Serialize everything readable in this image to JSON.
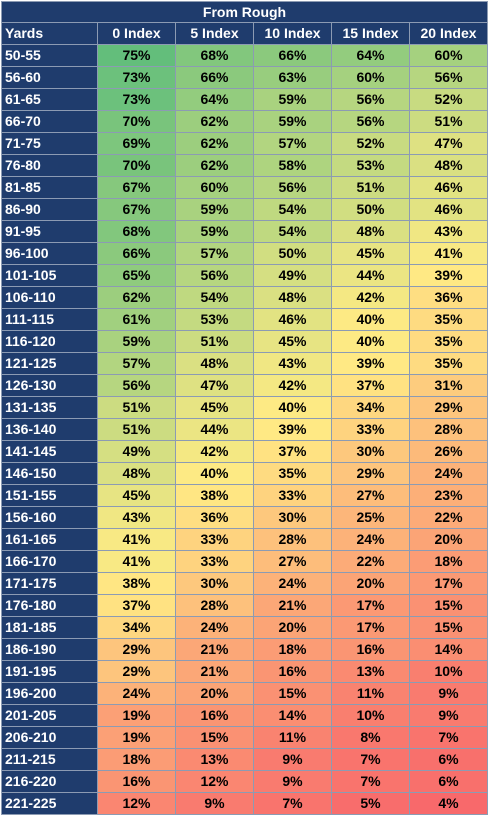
{
  "title": "From Rough",
  "headers": [
    "Yards",
    "0 Index",
    "5 Index",
    "10 Index",
    "15 Index",
    "20 Index"
  ],
  "colors": {
    "header_bg": "#1f3c6d",
    "high": "#63be7b",
    "mid": "#ffeb84",
    "low": "#f8696b"
  },
  "rows": [
    {
      "yards": "50-55",
      "values": [
        "75%",
        "68%",
        "66%",
        "64%",
        "60%"
      ]
    },
    {
      "yards": "56-60",
      "values": [
        "73%",
        "66%",
        "63%",
        "60%",
        "56%"
      ]
    },
    {
      "yards": "61-65",
      "values": [
        "73%",
        "64%",
        "59%",
        "56%",
        "52%"
      ]
    },
    {
      "yards": "66-70",
      "values": [
        "70%",
        "62%",
        "59%",
        "56%",
        "51%"
      ]
    },
    {
      "yards": "71-75",
      "values": [
        "69%",
        "62%",
        "57%",
        "52%",
        "47%"
      ]
    },
    {
      "yards": "76-80",
      "values": [
        "70%",
        "62%",
        "58%",
        "53%",
        "48%"
      ]
    },
    {
      "yards": "81-85",
      "values": [
        "67%",
        "60%",
        "56%",
        "51%",
        "46%"
      ]
    },
    {
      "yards": "86-90",
      "values": [
        "67%",
        "59%",
        "54%",
        "50%",
        "46%"
      ]
    },
    {
      "yards": "91-95",
      "values": [
        "68%",
        "59%",
        "54%",
        "48%",
        "43%"
      ]
    },
    {
      "yards": "96-100",
      "values": [
        "66%",
        "57%",
        "50%",
        "45%",
        "41%"
      ]
    },
    {
      "yards": "101-105",
      "values": [
        "65%",
        "56%",
        "49%",
        "44%",
        "39%"
      ]
    },
    {
      "yards": "106-110",
      "values": [
        "62%",
        "54%",
        "48%",
        "42%",
        "36%"
      ]
    },
    {
      "yards": "111-115",
      "values": [
        "61%",
        "53%",
        "46%",
        "40%",
        "35%"
      ]
    },
    {
      "yards": "116-120",
      "values": [
        "59%",
        "51%",
        "45%",
        "40%",
        "35%"
      ]
    },
    {
      "yards": "121-125",
      "values": [
        "57%",
        "48%",
        "43%",
        "39%",
        "35%"
      ]
    },
    {
      "yards": "126-130",
      "values": [
        "56%",
        "47%",
        "42%",
        "37%",
        "31%"
      ]
    },
    {
      "yards": "131-135",
      "values": [
        "51%",
        "45%",
        "40%",
        "34%",
        "29%"
      ]
    },
    {
      "yards": "136-140",
      "values": [
        "51%",
        "44%",
        "39%",
        "33%",
        "28%"
      ]
    },
    {
      "yards": "141-145",
      "values": [
        "49%",
        "42%",
        "37%",
        "30%",
        "26%"
      ]
    },
    {
      "yards": "146-150",
      "values": [
        "48%",
        "40%",
        "35%",
        "29%",
        "24%"
      ]
    },
    {
      "yards": "151-155",
      "values": [
        "45%",
        "38%",
        "33%",
        "27%",
        "23%"
      ]
    },
    {
      "yards": "156-160",
      "values": [
        "43%",
        "36%",
        "30%",
        "25%",
        "22%"
      ]
    },
    {
      "yards": "161-165",
      "values": [
        "41%",
        "33%",
        "28%",
        "24%",
        "20%"
      ]
    },
    {
      "yards": "166-170",
      "values": [
        "41%",
        "33%",
        "27%",
        "22%",
        "18%"
      ]
    },
    {
      "yards": "171-175",
      "values": [
        "38%",
        "30%",
        "24%",
        "20%",
        "17%"
      ]
    },
    {
      "yards": "176-180",
      "values": [
        "37%",
        "28%",
        "21%",
        "17%",
        "15%"
      ]
    },
    {
      "yards": "181-185",
      "values": [
        "34%",
        "24%",
        "20%",
        "17%",
        "15%"
      ]
    },
    {
      "yards": "186-190",
      "values": [
        "29%",
        "21%",
        "18%",
        "16%",
        "14%"
      ]
    },
    {
      "yards": "191-195",
      "values": [
        "29%",
        "21%",
        "16%",
        "13%",
        "10%"
      ]
    },
    {
      "yards": "196-200",
      "values": [
        "24%",
        "20%",
        "15%",
        "11%",
        "9%"
      ]
    },
    {
      "yards": "201-205",
      "values": [
        "19%",
        "16%",
        "14%",
        "10%",
        "9%"
      ]
    },
    {
      "yards": "206-210",
      "values": [
        "19%",
        "15%",
        "11%",
        "8%",
        "7%"
      ]
    },
    {
      "yards": "211-215",
      "values": [
        "18%",
        "13%",
        "9%",
        "7%",
        "6%"
      ]
    },
    {
      "yards": "216-220",
      "values": [
        "16%",
        "12%",
        "9%",
        "7%",
        "6%"
      ]
    },
    {
      "yards": "221-225",
      "values": [
        "12%",
        "9%",
        "7%",
        "5%",
        "4%"
      ]
    }
  ]
}
